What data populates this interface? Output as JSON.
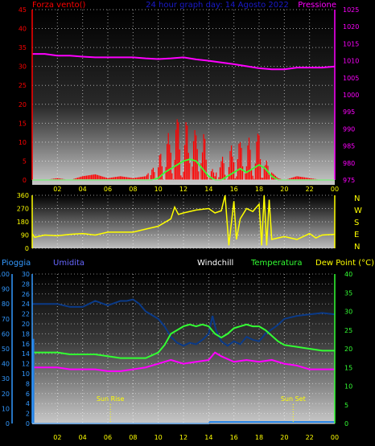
{
  "top_panel": {
    "left_title": "Forza vento()",
    "center_title": "24 hour graph day: 14 Agosto 2022",
    "right_title": "Pressione",
    "colors": {
      "left_title": "#ff0000",
      "center_title": "#1a1acc",
      "right_title": "#ff00ff",
      "wind": "#ff0000",
      "gust": "#33ff33",
      "pressure": "#ff00ff"
    }
  },
  "dir_panel": {
    "compass_letters": [
      "N",
      "W",
      "S",
      "E",
      "N"
    ],
    "colors": {
      "direction": "#ffff00",
      "letters": "#ffff00"
    }
  },
  "bottom_panel": {
    "titles": {
      "rain": "Pioggia",
      "humidity": "Umidita",
      "windchill": "Windchill",
      "temperature": "Temperatura",
      "dewpoint": "Dew Point (°C)"
    },
    "colors": {
      "rain": "#3399ff",
      "humidity": "#6666ff",
      "windchill": "#ffffff",
      "temperature": "#33ff33",
      "dewpoint": "#ffff00",
      "humidity_line": "#0a3a88",
      "temp_line": "#33ff33",
      "dew_line": "#ff00ff",
      "rain_line": "#1e7fe6"
    },
    "sun_rise_label": "Sun Rise",
    "sun_set_label": "Sun Set"
  },
  "chart_data": [
    {
      "type": "line",
      "x_ticks": [
        "02",
        "04",
        "06",
        "08",
        "10",
        "12",
        "14",
        "16",
        "18",
        "20",
        "22",
        "00"
      ],
      "y_left_ticks": [
        0,
        5,
        10,
        15,
        20,
        25,
        30,
        35,
        40,
        45
      ],
      "y_right_ticks": [
        975,
        980,
        985,
        990,
        995,
        1000,
        1005,
        1010,
        1015,
        1020,
        1025
      ],
      "ylim_left": [
        0,
        45
      ],
      "ylim_right": [
        975,
        1025
      ],
      "grid": true,
      "series": [
        {
          "name": "Pressione",
          "axis": "right",
          "x": [
            0,
            1,
            2,
            3,
            4,
            5,
            6,
            7,
            8,
            9,
            10,
            11,
            12,
            13,
            14,
            15,
            16,
            17,
            18,
            19,
            20,
            21,
            22,
            23,
            24
          ],
          "values": [
            1012,
            1012,
            1011.5,
            1011.5,
            1011.2,
            1011,
            1011,
            1011,
            1011,
            1010.7,
            1010.5,
            1010.7,
            1011,
            1010.4,
            1010,
            1009.5,
            1009,
            1008.4,
            1007.8,
            1007.5,
            1007.5,
            1008,
            1008,
            1008,
            1008.3
          ]
        }
      ],
      "wind_speed": {
        "x": [
          0,
          1,
          2,
          3,
          4,
          5,
          6,
          7,
          8,
          9,
          10,
          10.5,
          11,
          11.5,
          12,
          12.5,
          13,
          13.5,
          14,
          14.5,
          15,
          15.5,
          16,
          16.5,
          17,
          17.5,
          18,
          18.5,
          19,
          19.5,
          20,
          21,
          22,
          23,
          24
        ],
        "values": [
          0,
          0,
          0.5,
          0,
          1,
          1.5,
          0.5,
          1,
          0.5,
          1,
          5,
          13,
          12,
          17,
          14,
          18,
          12,
          15,
          6,
          1,
          6,
          7,
          11,
          10,
          12,
          10,
          13,
          6,
          2,
          0.5,
          0,
          1,
          0.5,
          0,
          0
        ]
      },
      "wind_gust": {
        "x": [
          0,
          9.5,
          10,
          10.5,
          11,
          11.5,
          12,
          12.5,
          13,
          13.5,
          14,
          14.5,
          15,
          15.5,
          16,
          16.5,
          17,
          17.5,
          18,
          18.5,
          19,
          19.5,
          20,
          24
        ],
        "values": [
          0,
          0,
          0.5,
          2,
          3,
          4,
          5,
          5.5,
          5,
          3,
          1,
          0,
          0,
          1,
          2,
          3,
          2,
          3,
          4,
          3,
          1,
          0,
          0,
          0
        ]
      }
    },
    {
      "type": "line",
      "x_ticks": [
        "02",
        "04",
        "06",
        "08",
        "10",
        "12",
        "14",
        "16",
        "18",
        "20",
        "22",
        "00"
      ],
      "y_ticks": [
        0,
        90,
        180,
        270,
        360
      ],
      "ylim": [
        0,
        360
      ],
      "grid": true,
      "series": [
        {
          "name": "Direzione",
          "x": [
            0,
            0.2,
            1,
            2,
            3,
            4,
            5,
            6,
            7,
            8,
            9,
            10,
            11,
            11.3,
            11.6,
            12,
            13,
            14,
            14.5,
            15,
            15.3,
            15.6,
            16,
            16.2,
            16.5,
            17,
            17.5,
            18,
            18.2,
            18.4,
            18.6,
            18.8,
            19,
            19.5,
            20,
            21,
            22,
            22.5,
            23,
            24
          ],
          "values": [
            100,
            75,
            90,
            85,
            95,
            100,
            90,
            110,
            110,
            110,
            130,
            150,
            200,
            280,
            230,
            240,
            260,
            270,
            240,
            255,
            360,
            20,
            320,
            60,
            200,
            270,
            250,
            300,
            20,
            360,
            20,
            330,
            60,
            70,
            80,
            60,
            100,
            70,
            90,
            95
          ]
        }
      ]
    },
    {
      "type": "line",
      "x_ticks": [
        "02",
        "04",
        "06",
        "08",
        "10",
        "12",
        "14",
        "16",
        "18",
        "20",
        "22",
        "00"
      ],
      "y_left_outer_ticks": [
        0,
        10,
        20,
        30,
        40,
        50,
        60,
        70,
        80,
        90,
        100
      ],
      "y_left_inner_ticks": [
        0,
        2,
        4,
        6,
        8,
        10,
        12,
        14,
        16,
        18,
        20,
        22,
        24,
        26,
        28,
        30
      ],
      "y_right_ticks": [
        0,
        5,
        10,
        15,
        20,
        25,
        30,
        35,
        40
      ],
      "ylim_left": [
        0,
        30
      ],
      "ylim_right": [
        0,
        40
      ],
      "grid": true,
      "series": [
        {
          "name": "Umidita",
          "axis": "outer",
          "x": [
            0,
            1,
            2,
            3,
            4,
            5,
            6,
            7,
            7.5,
            8,
            8.5,
            9,
            10,
            10.5,
            11,
            11.5,
            12,
            12.5,
            13,
            13.5,
            14,
            14.3,
            14.6,
            15,
            15.5,
            16,
            16.5,
            17,
            17.5,
            18,
            18.5,
            19,
            19.5,
            20,
            21,
            22,
            23,
            24
          ],
          "values": [
            80,
            80,
            80,
            78,
            78,
            82,
            79,
            82,
            82,
            83,
            80,
            75,
            70,
            65,
            58,
            54,
            52,
            54,
            53,
            56,
            60,
            72,
            62,
            55,
            52,
            55,
            53,
            58,
            56,
            55,
            60,
            63,
            66,
            70,
            72,
            73,
            74,
            73
          ]
        },
        {
          "name": "Temperatura",
          "axis": "right",
          "x": [
            0,
            1,
            2,
            3,
            4,
            5,
            6,
            7,
            8,
            9,
            10,
            10.5,
            11,
            11.5,
            12,
            12.5,
            13,
            13.5,
            14,
            14.5,
            15,
            15.5,
            16,
            16.5,
            17,
            17.5,
            18,
            18.5,
            19,
            19.5,
            20,
            21,
            22,
            23,
            24
          ],
          "values": [
            19,
            19,
            19,
            18.5,
            18.5,
            18.5,
            18,
            17.5,
            17.5,
            17.5,
            19,
            21,
            24,
            25,
            26,
            26.5,
            26,
            26.5,
            26,
            24,
            23,
            24,
            25.5,
            26,
            26.5,
            26,
            26,
            25,
            23.5,
            22,
            21,
            20.5,
            20,
            19.5,
            19.5
          ]
        },
        {
          "name": "Dew Point",
          "axis": "right",
          "x": [
            0,
            1,
            2,
            3,
            4,
            5,
            6,
            7,
            8,
            9,
            10,
            11,
            12,
            13,
            14,
            14.5,
            15,
            16,
            17,
            18,
            19,
            20,
            21,
            22,
            23,
            24
          ],
          "values": [
            15,
            15,
            15,
            14.5,
            14.5,
            14.5,
            14,
            14,
            14.5,
            15,
            16,
            17,
            16,
            16.5,
            17,
            19,
            18,
            16.5,
            17,
            16.5,
            17,
            16,
            15.5,
            14.5,
            14.5,
            14.5
          ]
        },
        {
          "name": "Pioggia",
          "axis": "rain",
          "x": [
            0,
            0.1,
            0.3,
            1,
            5,
            14,
            14.1,
            24
          ],
          "values": [
            0,
            0,
            0,
            0,
            0,
            0,
            0.3,
            0.3
          ]
        }
      ],
      "sun_rise_hour": 6.2,
      "sun_set_hour": 20.7
    }
  ]
}
